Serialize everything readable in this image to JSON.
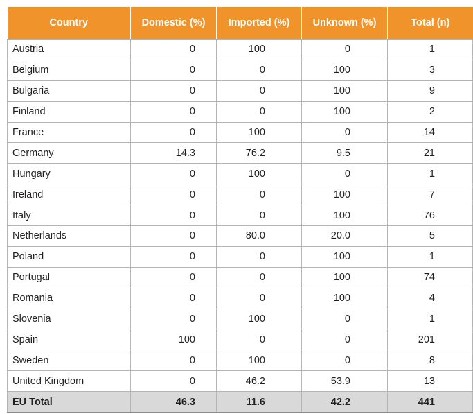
{
  "header": {
    "country": "Country",
    "domestic": "Domestic (%)",
    "imported": "Imported (%)",
    "unknown": "Unknown (%)",
    "total": "Total (n)"
  },
  "rows": [
    {
      "country": "Austria",
      "domestic": "0",
      "imported": "100",
      "unknown": "0",
      "total": "1"
    },
    {
      "country": "Belgium",
      "domestic": "0",
      "imported": "0",
      "unknown": "100",
      "total": "3"
    },
    {
      "country": "Bulgaria",
      "domestic": "0",
      "imported": "0",
      "unknown": "100",
      "total": "9"
    },
    {
      "country": "Finland",
      "domestic": "0",
      "imported": "0",
      "unknown": "100",
      "total": "2"
    },
    {
      "country": "France",
      "domestic": "0",
      "imported": "100",
      "unknown": "0",
      "total": "14"
    },
    {
      "country": "Germany",
      "domestic": "14.3",
      "imported": "76.2",
      "unknown": "9.5",
      "total": "21"
    },
    {
      "country": "Hungary",
      "domestic": "0",
      "imported": "100",
      "unknown": "0",
      "total": "1"
    },
    {
      "country": "Ireland",
      "domestic": "0",
      "imported": "0",
      "unknown": "100",
      "total": "7"
    },
    {
      "country": "Italy",
      "domestic": "0",
      "imported": "0",
      "unknown": "100",
      "total": "76"
    },
    {
      "country": "Netherlands",
      "domestic": "0",
      "imported": "80.0",
      "unknown": "20.0",
      "total": "5"
    },
    {
      "country": "Poland",
      "domestic": "0",
      "imported": "0",
      "unknown": "100",
      "total": "1"
    },
    {
      "country": "Portugal",
      "domestic": "0",
      "imported": "0",
      "unknown": "100",
      "total": "74"
    },
    {
      "country": "Romania",
      "domestic": "0",
      "imported": "0",
      "unknown": "100",
      "total": "4"
    },
    {
      "country": "Slovenia",
      "domestic": "0",
      "imported": "100",
      "unknown": "0",
      "total": "1"
    },
    {
      "country": "Spain",
      "domestic": "100",
      "imported": "0",
      "unknown": "0",
      "total": "201"
    },
    {
      "country": "Sweden",
      "domestic": "0",
      "imported": "100",
      "unknown": "0",
      "total": "8"
    },
    {
      "country": "United Kingdom",
      "domestic": "0",
      "imported": "46.2",
      "unknown": "53.9",
      "total": "13"
    }
  ],
  "footer": {
    "country": "EU Total",
    "domestic": "46.3",
    "imported": "11.6",
    "unknown": "42.2",
    "total": "441"
  },
  "colors": {
    "header_bg": "#f0932b",
    "header_text": "#ffffff",
    "total_row_bg": "#d9d9d9",
    "grid": "#b5b5b5"
  }
}
